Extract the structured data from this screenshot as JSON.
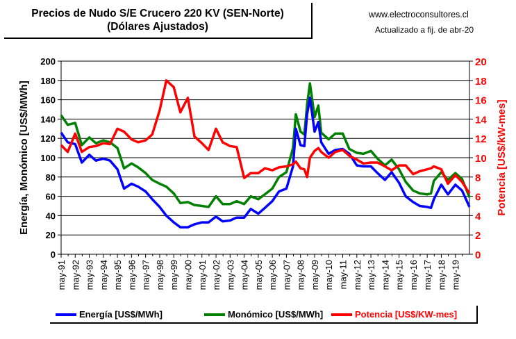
{
  "header": {
    "title_line1": "Precios de Nudo S/E Crucero 220 KV (SEN-Norte)",
    "title_line2": "(Dólares Ajustados)",
    "website": "www.electroconsultores.cl",
    "updated": "Actualizado a fij. de abr-20"
  },
  "chart_data": {
    "type": "line",
    "ylabel": "Energía, Monómico [US$/MWh]",
    "y2label": "Potencia [US$/kW-mes]",
    "ylim": [
      0,
      200
    ],
    "y2lim": [
      0,
      20
    ],
    "yticks": [
      0,
      20,
      40,
      60,
      80,
      100,
      120,
      140,
      160,
      180,
      200
    ],
    "y2ticks": [
      0,
      2,
      4,
      6,
      8,
      10,
      12,
      14,
      16,
      18,
      20
    ],
    "xlim": [
      1991.33,
      2020.33
    ],
    "xtick_labels": [
      "may-91",
      "may-92",
      "may-93",
      "may-94",
      "may-95",
      "may-96",
      "may-97",
      "may-98",
      "may-99",
      "may-00",
      "may-01",
      "may-02",
      "may-03",
      "may-04",
      "may-05",
      "may-06",
      "may-07",
      "may-08",
      "may-09",
      "may-10",
      "may-11",
      "may-12",
      "may-13",
      "may-14",
      "may-15",
      "may-16",
      "may-17",
      "may-18",
      "may-19"
    ],
    "colors": {
      "energia": "#0000ff",
      "monomico": "#008000",
      "potencia": "#ff0000"
    },
    "series": [
      {
        "name": "Energía [US$/MWh]",
        "axis": "left",
        "x": [
          1991.33,
          1991.8,
          1992.33,
          1992.8,
          1993.33,
          1993.8,
          1994.33,
          1994.8,
          1995.33,
          1995.8,
          1996.33,
          1996.8,
          1997.33,
          1997.8,
          1998.33,
          1998.8,
          1999.33,
          1999.8,
          2000.33,
          2000.8,
          2001.33,
          2001.8,
          2002.33,
          2002.8,
          2003.33,
          2003.8,
          2004.33,
          2004.8,
          2005.33,
          2005.8,
          2006.33,
          2006.8,
          2007.33,
          2007.8,
          2008.0,
          2008.33,
          2008.6,
          2008.8,
          2009.0,
          2009.33,
          2009.6,
          2009.8,
          2010.33,
          2010.8,
          2011.33,
          2011.8,
          2012.33,
          2012.8,
          2013.33,
          2013.8,
          2014.33,
          2014.8,
          2015.33,
          2015.8,
          2016.33,
          2016.8,
          2017.33,
          2017.6,
          2017.8,
          2018.33,
          2018.8,
          2019.33,
          2019.8,
          2020.33
        ],
        "values": [
          126,
          116,
          114,
          95,
          103,
          97,
          99,
          97,
          88,
          68,
          73,
          70,
          65,
          57,
          49,
          40,
          33,
          28,
          28,
          31,
          33,
          33,
          39,
          34,
          35,
          38,
          38,
          47,
          42,
          48,
          55,
          65,
          68,
          91,
          130,
          113,
          112,
          145,
          162,
          127,
          137,
          116,
          104,
          108,
          109,
          104,
          92,
          91,
          91,
          84,
          77,
          85,
          74,
          60,
          54,
          50,
          49,
          48,
          57,
          72,
          62,
          72,
          66,
          49
        ]
      },
      {
        "name": "Monómico [US$/MWh]",
        "axis": "left",
        "x": [
          1991.33,
          1991.8,
          1992.33,
          1992.8,
          1993.33,
          1993.8,
          1994.33,
          1994.8,
          1995.33,
          1995.8,
          1996.33,
          1996.8,
          1997.33,
          1997.8,
          1998.33,
          1998.8,
          1999.33,
          1999.8,
          2000.33,
          2000.8,
          2001.33,
          2001.8,
          2002.33,
          2002.8,
          2003.33,
          2003.8,
          2004.33,
          2004.8,
          2005.33,
          2005.8,
          2006.33,
          2006.8,
          2007.33,
          2007.8,
          2008.0,
          2008.33,
          2008.6,
          2008.8,
          2009.0,
          2009.33,
          2009.6,
          2009.8,
          2010.33,
          2010.8,
          2011.33,
          2011.8,
          2012.33,
          2012.8,
          2013.33,
          2013.8,
          2014.33,
          2014.8,
          2015.33,
          2015.8,
          2016.33,
          2016.8,
          2017.33,
          2017.6,
          2017.8,
          2018.33,
          2018.8,
          2019.33,
          2019.8,
          2020.33
        ],
        "values": [
          144,
          134,
          136,
          113,
          121,
          115,
          118,
          116,
          110,
          89,
          94,
          90,
          84,
          77,
          73,
          70,
          63,
          53,
          54,
          51,
          50,
          49,
          60,
          52,
          52,
          55,
          52,
          60,
          57,
          62,
          68,
          80,
          85,
          110,
          145,
          127,
          124,
          155,
          177,
          142,
          154,
          126,
          119,
          125,
          125,
          109,
          105,
          104,
          107,
          99,
          92,
          98,
          88,
          75,
          66,
          63,
          62,
          63,
          76,
          85,
          77,
          84,
          78,
          59
        ]
      },
      {
        "name": "Potencia [US$/KW-mes]",
        "axis": "right",
        "x": [
          1991.33,
          1991.8,
          1992.33,
          1992.8,
          1993.33,
          1993.8,
          1994.33,
          1994.8,
          1995.33,
          1995.8,
          1996.33,
          1996.8,
          1997.33,
          1997.8,
          1998.33,
          1998.8,
          1999.33,
          1999.8,
          2000.33,
          2000.8,
          2001.33,
          2001.8,
          2002.33,
          2002.8,
          2003.33,
          2003.8,
          2004.33,
          2004.8,
          2005.33,
          2005.8,
          2006.33,
          2006.8,
          2007.33,
          2007.8,
          2008.0,
          2008.33,
          2008.6,
          2008.8,
          2009.0,
          2009.33,
          2009.6,
          2009.8,
          2010.33,
          2010.8,
          2011.33,
          2011.8,
          2012.33,
          2012.8,
          2013.33,
          2013.8,
          2014.33,
          2014.8,
          2015.33,
          2015.8,
          2016.33,
          2016.8,
          2017.33,
          2017.6,
          2017.8,
          2018.33,
          2018.8,
          2019.33,
          2019.8,
          2020.33
        ],
        "values": [
          11.3,
          10.6,
          12.5,
          10.6,
          11.1,
          11.2,
          11.5,
          11.4,
          13.0,
          12.7,
          11.9,
          11.6,
          11.8,
          12.4,
          14.9,
          18.0,
          17.3,
          14.7,
          16.2,
          12.2,
          11.5,
          10.8,
          13.0,
          11.6,
          11.2,
          11.1,
          7.9,
          8.4,
          8.4,
          8.9,
          8.7,
          9.0,
          9.1,
          9.3,
          9.6,
          8.9,
          8.8,
          8.0,
          10.0,
          10.7,
          11.0,
          10.6,
          10.0,
          10.6,
          10.8,
          10.2,
          9.8,
          9.4,
          9.5,
          9.5,
          9.1,
          8.7,
          9.2,
          9.2,
          8.3,
          8.6,
          8.8,
          8.9,
          9.1,
          8.8,
          7.3,
          8.2,
          7.5,
          6.3
        ]
      }
    ]
  },
  "legend": {
    "energia": "Energía [US$/MWh]",
    "monomico": "Monómico [US$/MWh]",
    "potencia": "Potencia [US$/KW-mes]"
  }
}
